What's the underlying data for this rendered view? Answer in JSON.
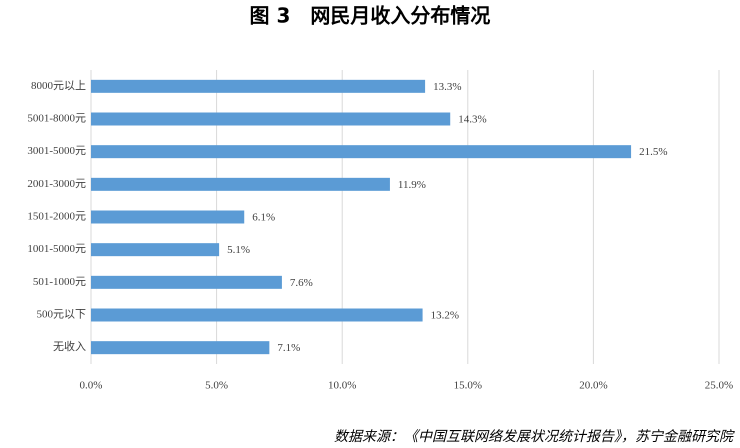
{
  "chart_data": {
    "type": "bar",
    "orientation": "horizontal",
    "title": "图 3　网民月收入分布情况",
    "categories": [
      "8000元以上",
      "5001-8000元",
      "3001-5000元",
      "2001-3000元",
      "1501-2000元",
      "1001-5000元",
      "501-1000元",
      "500元以下",
      "无收入"
    ],
    "values": [
      13.3,
      14.3,
      21.5,
      11.9,
      6.1,
      5.1,
      7.6,
      13.2,
      7.1
    ],
    "value_labels": [
      "13.3%",
      "14.3%",
      "21.5%",
      "11.9%",
      "6.1%",
      "5.1%",
      "7.6%",
      "13.2%",
      "7.1%"
    ],
    "color": "#5b9bd5",
    "xlim": [
      0,
      25
    ],
    "xticks": [
      {
        "value": 0,
        "label": "0.0%"
      },
      {
        "value": 5,
        "label": "5.0%"
      },
      {
        "value": 10,
        "label": "10.0%"
      },
      {
        "value": 15,
        "label": "15.0%"
      },
      {
        "value": 20,
        "label": "20.0%"
      },
      {
        "value": 25,
        "label": "25.0%"
      }
    ],
    "grid": true,
    "source": "数据来源：《中国互联网络发展状况统计报告》，苏宁金融研究院"
  }
}
